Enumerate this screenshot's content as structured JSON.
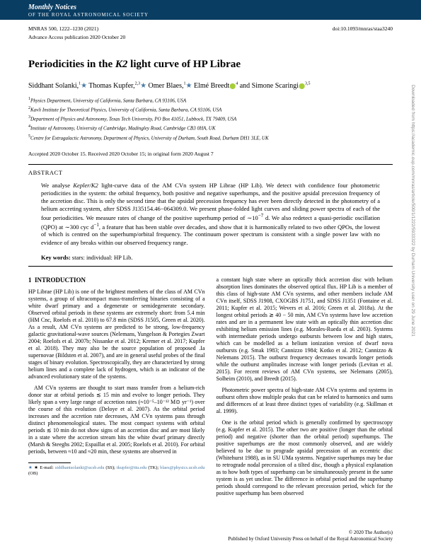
{
  "masthead": {
    "title": "Monthly Notices",
    "subtitle": "OF THE ROYAL ASTRONOMICAL SOCIETY"
  },
  "pub": {
    "citation": "MNRAS 500, 1222–1230 (2021)",
    "doi": "doi:10.1093/mnras/staa3240",
    "advance": "Advance Access publication 2020 October 20"
  },
  "title": "Periodicities in the K2 light curve of HP Librae",
  "authors": [
    {
      "name": "Siddhant Solanki",
      "affil": "1",
      "star": true
    },
    {
      "name": "Thomas Kupfer",
      "affil": "2,3",
      "star": true
    },
    {
      "name": "Omer Blaes",
      "affil": "1",
      "star": true
    },
    {
      "name": "Elmé Breedt",
      "affil": "4",
      "orcid": true
    },
    {
      "name": "Simone Scaringi",
      "affil": "3,5",
      "orcid": true
    }
  ],
  "affiliations": [
    "Physics Department, University of California, Santa Barbara, CA 93106, USA",
    "Kavli Institute for Theoretical Physics, University of California, Santa Barbara, CA 93106, USA",
    "Department of Physics and Astronomy, Texas Tech University, PO Box 41051, Lubbock, TX 79409, USA",
    "Institute of Astronomy, University of Cambridge, Madingley Road, Cambridge CB3 0HA, UK",
    "Centre for Extragalactic Astronomy, Department of Physics, University of Durham, South Road, Durham DH1 3LE, UK"
  ],
  "dates": "Accepted 2020 October 15. Received 2020 October 15; in original form 2020 August 7",
  "abstract": {
    "label": "ABSTRACT",
    "body": "We analyse Kepler/K2 light-curve data of the AM CVn system HP Librae (HP Lib). We detect with confidence four photometric periodicities in the system: the orbital frequency, both positive and negative superhumps, and the positive apsidal precession frequency of the accretion disc. This is only the second time that the apsidal precession frequency has ever been directly detected in the photometry of a helium accreting system, after SDSS J135154.46−064309.0. We present phase-folded light curves and sliding power spectra of each of the four periodicities. We measure rates of change of the positive superhump period of ∼10⁻⁷ d. We also redetect a quasi-periodic oscillation (QPO) at ∼300 cyc d⁻¹, a feature that has been stable over decades, and show that it is harmonically related to two other QPOs, the lowest of which is centred on the superhump/orbital frequency. The continuum power spectrum is consistent with a single power law with no evidence of any breaks within our observed frequency range."
  },
  "keywords": {
    "label": "Key words:",
    "text": "stars: individual: HP Lib."
  },
  "section1": {
    "num": "1",
    "title": "INTRODUCTION"
  },
  "col1": {
    "p1": "HP Librae (HP Lib) is one of the brightest members of the class of AM CVn systems, a group of ultracompact mass-transferring binaries consisting of a white dwarf primary and a degenerate or semidegenerate secondary. Observed orbital periods in these systems are extremely short: from 5.4 min (HM Cnc, Roelofs et al. 2010) to 67.8 min (SDSS J1505, Green et al. 2020). As a result, AM CVn systems are predicted to be strong, low-frequency galactic gravitational-wave sources (Nelemans, Yungelson & Portegies Zwart 2004; Roelofs et al. 2007b; Nissanke et al. 2012; Kremer et al. 2017; Kupfer et al. 2018). They may also be the source population of proposed .Ia supernovae (Bildsten et al. 2007), and are in general useful probes of the final stages of binary evolution. Spectroscopically, they are characterized by strong helium lines and a complete lack of hydrogen, which is an indicator of the advanced evolutionary state of the systems.",
    "p2": "AM CVn systems are thought to start mass transfer from a helium-rich donor star at orbital periods ≲ 15 min and evolve to longer periods. They likely span a very large range of accretion rates (≈10⁻⁵–10⁻¹² M⊙ yr⁻¹) over the course of this evolution (Deloye et al. 2007). As the orbital period increases and the accretion rate decreases, AM CVn systems pass through distinct phenomenological states. The most compact systems with orbital periods ≲ 10 min do not show signs of an accretion disc and are most likely in a state where the accretion stream hits the white dwarf primary directly (Marsh & Steeghs 2002; Espaillat et al. 2005; Roelofs et al. 2010). For orbital periods, between ≈10 and ≈20 min, these systems are observed in"
  },
  "col2": {
    "p1": "a constant high state where an optically thick accretion disc with helium absorption lines dominates the observed optical flux. HP Lib is a member of this class of high-state AM CVn systems, and other members include AM CVn itself, SDSS J1908, CXOGBS J1751, and SDSS J1351 (Fontaine et al. 2011; Kupfer et al. 2015; Wevers et al. 2016; Green et al. 2018a). At the longest orbital periods ≳ 40 − 50 min, AM CVn systems have low accretion rates and are in a permanent low state with an optically thin accretion disc exhibiting helium emission lines (e.g. Morales-Rueda et al. 2003). Systems with intermediate periods undergo outbursts between low and high states, which can be modelled as a helium ionization version of dwarf nova outbursts (e.g. Smak 1983; Cannizzo 1984; Kotko et al. 2012; Cannizzo & Nelemans 2015). The outburst frequency decreases towards longer periods while the outburst amplitudes increase with longer periods (Levitan et al. 2015). For recent reviews of AM CVn systems, see Nelemans (2005), Solheim (2010), and Breedt (2015).",
    "p2": "Photometric power spectra of high-state AM CVn systems and systems in outburst often show multiple peaks that can be related to harmonics and sums and differences of at least three distinct types of variability (e.g. Skillman et al. 1999).",
    "p3": "One is the orbital period which is generally confirmed by spectroscopy (e.g. Kupfer et al. 2015). The other two are positive (longer than the orbital period) and negative (shorter than the orbital period) superhumps. The positive superhumps are the most commonly observed, and are widely believed to be due to prograde apsidal precession of an eccentric disc (Whitehurst 1988), as in SU UMa systems. Negative superhumps may be due to retrograde nodal precession of a tilted disc, though a physical explanation as to how both types of superhump can be simultaneously present in the same system is as yet unclear. The difference in orbital period and the superhump periods should correspond to the relevant precession period, which for the positive superhump has been observed"
  },
  "footnote": {
    "label": "★ E-mail:",
    "e1": "siddhantsolanki@ucsb.edu",
    "n1": "(SS);",
    "e2": "tkupfer@ttu.edu",
    "n2": "(TK);",
    "e3": "blaes@physics.ucsb.edu",
    "n3": "(OB)"
  },
  "footer": {
    "left": "",
    "right1": "© 2020 The Author(s)",
    "right2": "Published by Oxford University Press on behalf of the Royal Astronomical Society"
  },
  "sidetext": "Downloaded from https://academic.oup.com/mnras/article/500/1/1222/5933322 by Durham University user on 29 June 2021"
}
